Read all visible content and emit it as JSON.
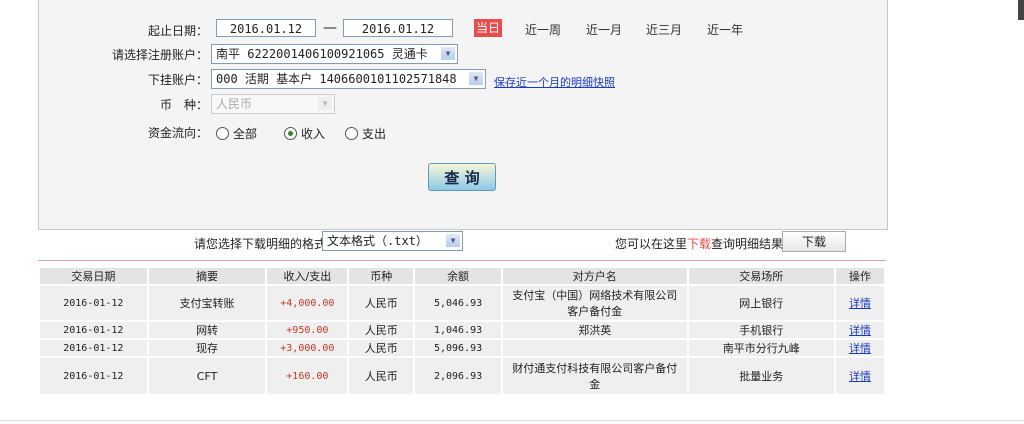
{
  "form": {
    "date_label": "起止日期：",
    "start_date": "2016.01.12",
    "dash": "—",
    "end_date": "2016.01.12",
    "quick_ranges": [
      "当日",
      "近一周",
      "近一月",
      "近三月",
      "近一年"
    ],
    "account_label": "请选择注册账户：",
    "account_value": "南平 6222001406100921065 灵通卡",
    "sub_account_label": "下挂账户：",
    "sub_account_value": "000 活期 基本户 1406600101102571848",
    "snapshot_link": "保存近一个月的明细快照",
    "currency_label": "币　种：",
    "currency_value": "人民币",
    "flow_label": "资金流向：",
    "flow_options": [
      "全部",
      "收入",
      "支出"
    ],
    "flow_selected": "收入",
    "query_button": "查 询"
  },
  "download": {
    "format_label": "请您选择下载明细的格式",
    "format_value": "文本格式（.txt）",
    "hint_pre": "您可以在这里",
    "hint_link": "下载",
    "hint_post": "查询明细结果",
    "button": "下载"
  },
  "table": {
    "headers": [
      "交易日期",
      "摘要",
      "收入/支出",
      "币种",
      "余额",
      "对方户名",
      "交易场所",
      "操作"
    ],
    "rows": [
      [
        "2016-01-12",
        "支付宝转账",
        "+4,000.00",
        "人民币",
        "5,046.93",
        "支付宝（中国）网络技术有限公司客户备付金",
        "网上银行",
        "详情"
      ],
      [
        "2016-01-12",
        "网转",
        "+950.00",
        "人民币",
        "1,046.93",
        "郑洪英",
        "手机银行",
        "详情"
      ],
      [
        "2016-01-12",
        "现存",
        "+3,000.00",
        "人民币",
        "5,096.93",
        "",
        "南平市分行九峰",
        "详情"
      ],
      [
        "2016-01-12",
        "CFT",
        "+160.00",
        "人民币",
        "2,096.93",
        "财付通支付科技有限公司客户备付金",
        "批量业务",
        "详情"
      ]
    ]
  },
  "colors": {
    "accent_red": "#e84c4c",
    "amount": "#c0392b",
    "link": "#1a3bbf"
  }
}
